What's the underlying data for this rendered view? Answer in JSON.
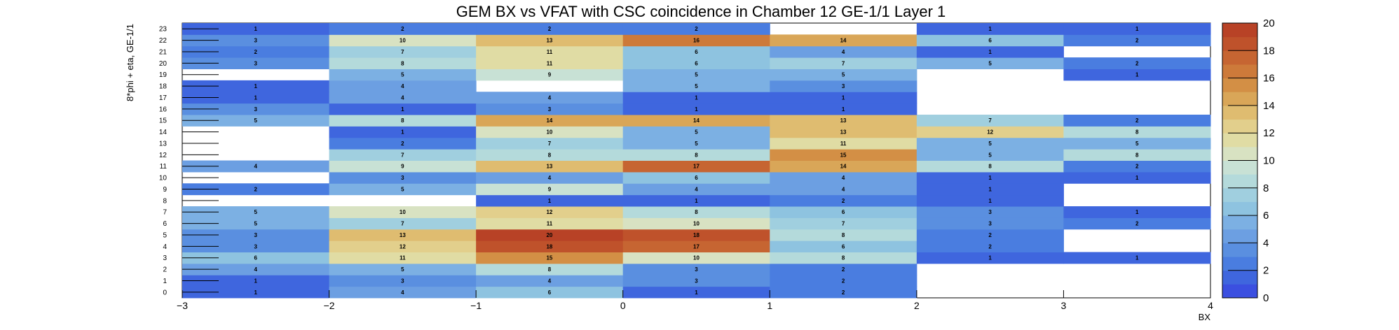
{
  "chart_data": {
    "type": "heatmap",
    "title": "GEM BX vs VFAT with CSC coincidence in Chamber 12 GE-1/1 Layer 1",
    "xlabel": "BX",
    "ylabel": "8*phi + eta, GE-1/1",
    "x_bins": [
      -3,
      -2,
      -1,
      0,
      1,
      2,
      3
    ],
    "xlim": [
      -3,
      4
    ],
    "x_ticks": [
      "-3",
      "-2",
      "-1",
      "0",
      "1",
      "2",
      "3",
      "4"
    ],
    "y_bins": [
      0,
      1,
      2,
      3,
      4,
      5,
      6,
      7,
      8,
      9,
      10,
      11,
      12,
      13,
      14,
      15,
      16,
      17,
      18,
      19,
      20,
      21,
      22,
      23
    ],
    "y_ticks": [
      "0",
      "1",
      "2",
      "3",
      "4",
      "5",
      "6",
      "7",
      "8",
      "9",
      "10",
      "11",
      "12",
      "13",
      "14",
      "15",
      "16",
      "17",
      "18",
      "19",
      "20",
      "21",
      "22",
      "23"
    ],
    "zlim": [
      0,
      20
    ],
    "z_ticks": [
      "0",
      "2",
      "4",
      "6",
      "8",
      "10",
      "12",
      "14",
      "16",
      "18",
      "20"
    ],
    "values": [
      [
        1,
        4,
        6,
        1,
        2,
        null,
        null
      ],
      [
        1,
        3,
        4,
        3,
        2,
        null,
        null
      ],
      [
        4,
        5,
        8,
        3,
        2,
        null,
        null
      ],
      [
        6,
        11,
        15,
        10,
        8,
        1,
        1
      ],
      [
        3,
        12,
        18,
        17,
        6,
        2,
        null
      ],
      [
        3,
        13,
        20,
        18,
        8,
        2,
        null
      ],
      [
        5,
        7,
        11,
        10,
        7,
        3,
        2
      ],
      [
        5,
        10,
        12,
        8,
        6,
        3,
        1
      ],
      [
        null,
        null,
        1,
        1,
        2,
        1,
        null
      ],
      [
        2,
        5,
        9,
        4,
        4,
        1,
        null
      ],
      [
        null,
        3,
        4,
        6,
        4,
        1,
        1
      ],
      [
        4,
        9,
        13,
        17,
        14,
        8,
        2
      ],
      [
        null,
        7,
        8,
        8,
        15,
        5,
        8
      ],
      [
        null,
        2,
        7,
        5,
        11,
        5,
        5
      ],
      [
        null,
        1,
        10,
        5,
        13,
        12,
        8
      ],
      [
        5,
        8,
        14,
        14,
        13,
        7,
        2
      ],
      [
        3,
        1,
        3,
        1,
        1,
        null,
        null
      ],
      [
        1,
        4,
        4,
        1,
        1,
        null,
        null
      ],
      [
        1,
        4,
        null,
        5,
        3,
        null,
        null
      ],
      [
        null,
        5,
        9,
        5,
        5,
        null,
        1
      ],
      [
        3,
        8,
        11,
        6,
        7,
        5,
        2
      ],
      [
        2,
        7,
        11,
        6,
        4,
        1,
        null
      ],
      [
        3,
        10,
        13,
        16,
        14,
        6,
        2
      ],
      [
        1,
        2,
        2,
        2,
        null,
        1,
        1
      ]
    ],
    "colorscale": [
      "#3b4fe0",
      "#3f66de",
      "#4a7de0",
      "#5a8fe0",
      "#6c9fe2",
      "#7cb0e3",
      "#8ec3e0",
      "#a0cfdf",
      "#b4dadb",
      "#c8e1d5",
      "#d8e2c2",
      "#e0dca4",
      "#e2cf8c",
      "#dfbc70",
      "#d9a658",
      "#d38f45",
      "#cd7a3a",
      "#c66532",
      "#bf522b",
      "#b84226"
    ]
  }
}
